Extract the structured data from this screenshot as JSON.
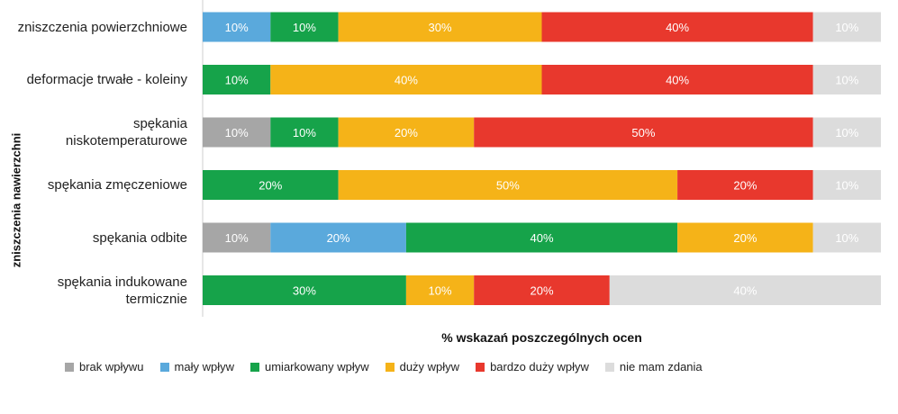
{
  "chart_data": {
    "type": "bar",
    "orientation": "horizontal",
    "stacked": true,
    "ylabel": "zniszczenia nawierzchni",
    "xlabel": "% wskazań poszczególnych ocen",
    "categories": [
      "zniszczenia powierzchniowe",
      "deformacje trwałe - koleiny",
      "spękania\nniskotemperaturowe",
      "spękania zmęczeniowe",
      "spękania odbite",
      "spękania indukowane\ntermicznie"
    ],
    "series": [
      {
        "name": "brak wpływu",
        "color": "#a6a6a6",
        "values": [
          0,
          0,
          10,
          0,
          10,
          0
        ]
      },
      {
        "name": "mały wpływ",
        "color": "#5aa9dc",
        "values": [
          10,
          0,
          0,
          0,
          20,
          0
        ]
      },
      {
        "name": "umiarkowany wpływ",
        "color": "#16a34a",
        "values": [
          10,
          10,
          10,
          20,
          40,
          30
        ]
      },
      {
        "name": "duży wpływ",
        "color": "#f5b318",
        "values": [
          30,
          40,
          20,
          50,
          20,
          10
        ]
      },
      {
        "name": "bardzo duży wpływ",
        "color": "#e8382d",
        "values": [
          40,
          40,
          50,
          20,
          0,
          20
        ]
      },
      {
        "name": "nie mam zdania",
        "color": "#dcdcdc",
        "values": [
          10,
          10,
          10,
          10,
          10,
          40
        ]
      }
    ],
    "xlim": [
      0,
      100
    ],
    "legend_position": "bottom",
    "grid": false
  }
}
